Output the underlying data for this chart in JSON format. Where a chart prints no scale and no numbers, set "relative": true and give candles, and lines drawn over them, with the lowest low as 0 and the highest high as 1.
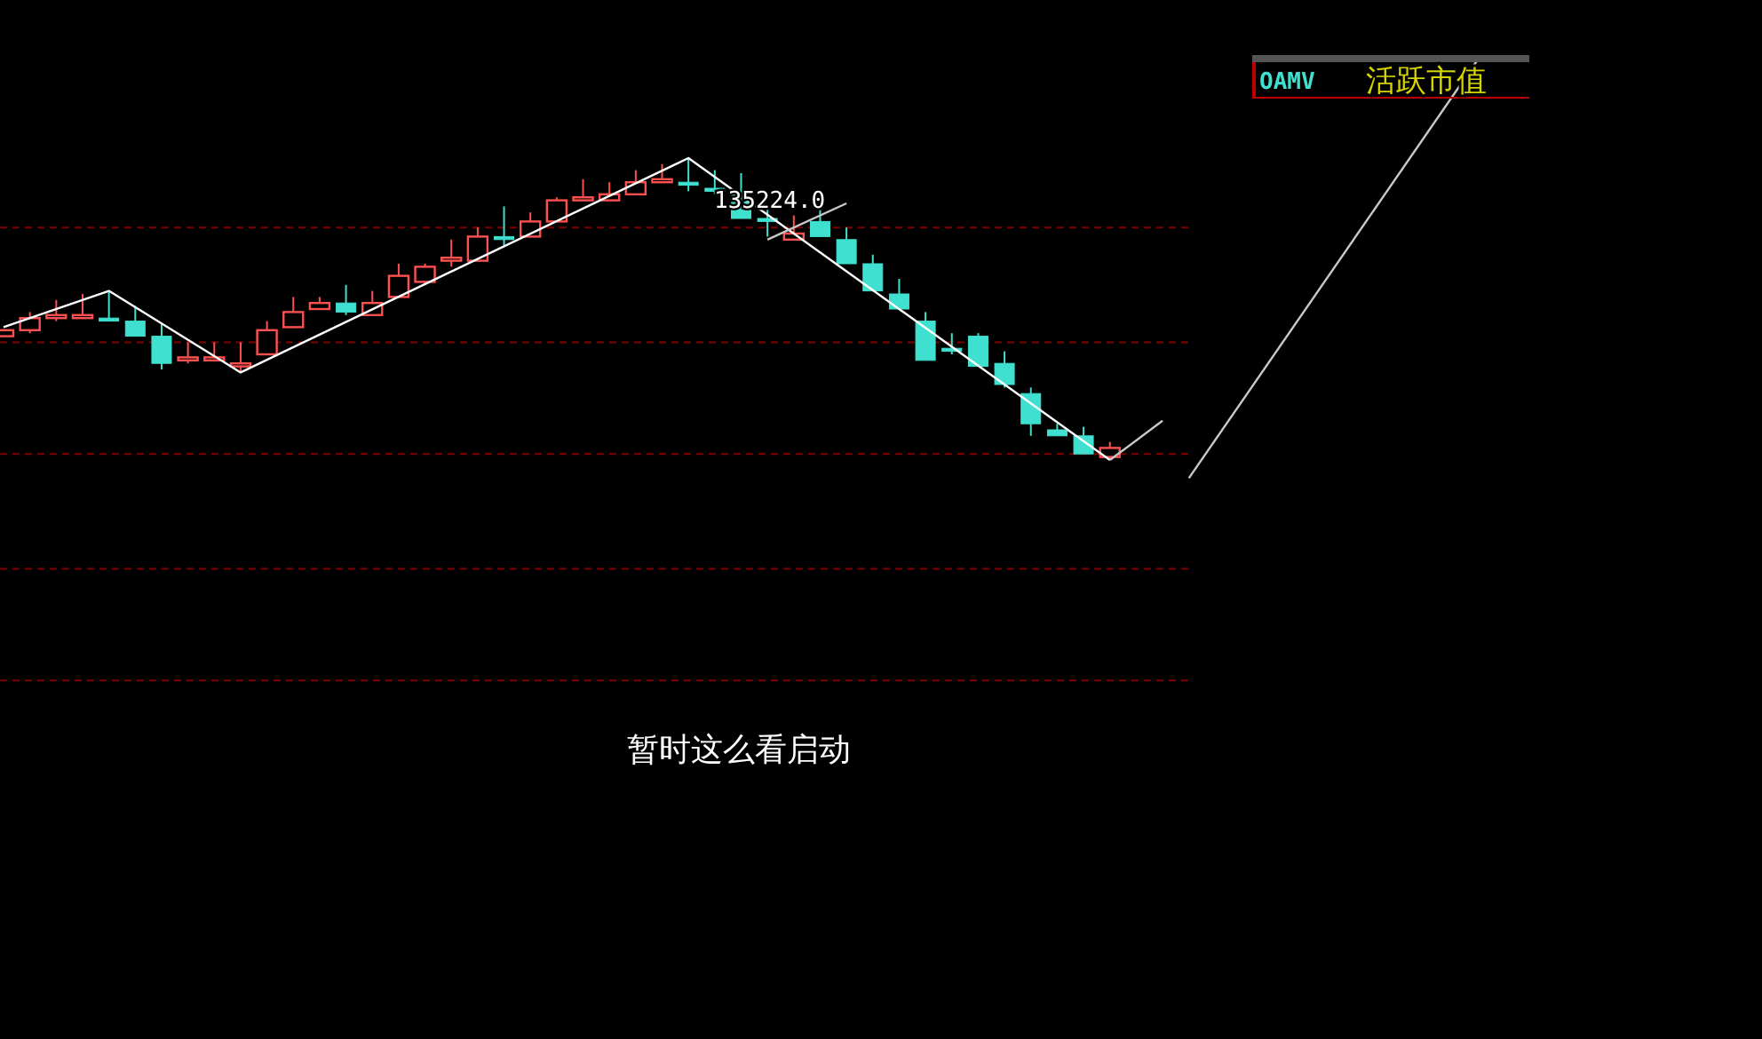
{
  "chart_data": {
    "type": "candlestick",
    "relative": true,
    "title": "OAMV",
    "subtitle": "活跃市值",
    "annotations": [
      "135224.0",
      "暂时这么看启动"
    ],
    "categories": [
      null,
      null,
      null,
      null,
      null,
      null,
      null,
      null,
      null,
      null,
      null,
      null,
      null,
      null,
      null,
      null,
      null,
      null,
      null,
      null,
      null,
      null,
      null,
      null,
      null,
      null,
      null,
      null,
      null,
      null,
      null,
      null,
      null,
      null,
      null,
      null,
      null,
      null,
      null,
      null,
      null,
      null,
      null,
      null,
      null,
      null,
      null,
      null,
      null,
      null,
      null,
      null,
      null,
      null,
      null,
      null,
      null
    ],
    "ohlc": [
      [
        0.41,
        0.43,
        0.41,
        0.43
      ],
      [
        0.43,
        0.49,
        0.42,
        0.47
      ],
      [
        0.47,
        0.53,
        0.46,
        0.48
      ],
      [
        0.47,
        0.55,
        0.47,
        0.48
      ],
      [
        0.47,
        0.56,
        0.46,
        0.46
      ],
      [
        0.46,
        0.51,
        0.41,
        0.41
      ],
      [
        0.41,
        0.45,
        0.3,
        0.32
      ],
      [
        0.33,
        0.39,
        0.32,
        0.34
      ],
      [
        0.33,
        0.39,
        0.33,
        0.34
      ],
      [
        0.31,
        0.39,
        0.29,
        0.32
      ],
      [
        0.35,
        0.46,
        0.35,
        0.43
      ],
      [
        0.44,
        0.54,
        0.44,
        0.49
      ],
      [
        0.5,
        0.54,
        0.5,
        0.52
      ],
      [
        0.52,
        0.58,
        0.48,
        0.49
      ],
      [
        0.48,
        0.56,
        0.48,
        0.52
      ],
      [
        0.54,
        0.65,
        0.54,
        0.61
      ],
      [
        0.59,
        0.65,
        0.58,
        0.64
      ],
      [
        0.66,
        0.73,
        0.64,
        0.67
      ],
      [
        0.66,
        0.77,
        0.66,
        0.74
      ],
      [
        0.74,
        0.84,
        0.71,
        0.73
      ],
      [
        0.74,
        0.82,
        0.74,
        0.79
      ],
      [
        0.79,
        0.87,
        0.79,
        0.86
      ],
      [
        0.86,
        0.93,
        0.86,
        0.87
      ],
      [
        0.86,
        0.92,
        0.86,
        0.88
      ],
      [
        0.88,
        0.96,
        0.88,
        0.92
      ],
      [
        0.92,
        0.98,
        0.92,
        0.93
      ],
      [
        0.92,
        1.0,
        0.89,
        0.91
      ],
      [
        0.9,
        0.96,
        0.88,
        0.89
      ],
      [
        0.89,
        0.95,
        0.8,
        0.8
      ],
      [
        0.8,
        0.84,
        0.74,
        0.79
      ],
      [
        0.73,
        0.81,
        0.73,
        0.75
      ],
      [
        0.79,
        0.83,
        0.74,
        0.74
      ],
      [
        0.73,
        0.77,
        0.65,
        0.65
      ],
      [
        0.65,
        0.68,
        0.56,
        0.56
      ],
      [
        0.55,
        0.6,
        0.5,
        0.5
      ],
      [
        0.46,
        0.49,
        0.33,
        0.33
      ],
      [
        0.37,
        0.42,
        0.35,
        0.36
      ],
      [
        0.41,
        0.42,
        0.31,
        0.31
      ],
      [
        0.32,
        0.36,
        0.24,
        0.25
      ],
      [
        0.22,
        0.24,
        0.08,
        0.12
      ],
      [
        0.1,
        0.12,
        0.08,
        0.08
      ],
      [
        0.08,
        0.11,
        0.02,
        0.02
      ],
      [
        0.01,
        0.06,
        0.0,
        0.04
      ],
      null,
      null,
      null,
      null,
      null,
      null,
      null,
      null,
      null,
      null,
      null,
      null,
      null,
      null
    ],
    "colors": [
      "#ff5050",
      "#ff5050",
      "#ff5050",
      "#ff5050",
      "#40e0d0",
      "#40e0d0",
      "#40e0d0",
      "#ff5050",
      "#ff5050",
      "#ff5050",
      "#ff5050",
      "#ff5050",
      "#ff5050",
      "#40e0d0",
      "#ff5050",
      "#ff5050",
      "#ff5050",
      "#ff5050",
      "#ff5050",
      "#40e0d0",
      "#ff5050",
      "#ff5050",
      "#ff5050",
      "#ff5050",
      "#ff5050",
      "#ff5050",
      "#40e0d0",
      "#40e0d0",
      "#40e0d0",
      "#40e0d0",
      "#ff5050",
      "#40e0d0",
      "#40e0d0",
      "#40e0d0",
      "#40e0d0",
      "#40e0d0",
      "#40e0d0",
      "#40e0d0",
      "#40e0d0",
      "#40e0d0",
      "#40e0d0",
      "#40e0d0",
      "#ff5050",
      null,
      null,
      null,
      null,
      null,
      null,
      null,
      null,
      null,
      null,
      null,
      null,
      null,
      null
    ],
    "series": [
      {
        "type": "line",
        "color": "#ffffff",
        "values": [
          0.44,
          null,
          null,
          null,
          0.56,
          null,
          null,
          null,
          null,
          0.29,
          null,
          null,
          null,
          null,
          null,
          null,
          null,
          null,
          null,
          null,
          null,
          null,
          null,
          null,
          null,
          null,
          1.0,
          null,
          null,
          null,
          null,
          null,
          null,
          null,
          null,
          null,
          null,
          null,
          null,
          null,
          null,
          null,
          0.0,
          null,
          null,
          null,
          null,
          null,
          null,
          null,
          null,
          null,
          null,
          null,
          null,
          null,
          null
        ]
      },
      {
        "type": "line",
        "color": "#c8c8c8",
        "values": [
          null,
          null,
          null,
          null,
          null,
          null,
          null,
          null,
          null,
          null,
          null,
          null,
          null,
          null,
          null,
          null,
          null,
          null,
          null,
          null,
          null,
          null,
          null,
          null,
          null,
          null,
          null,
          null,
          null,
          null,
          null,
          null,
          null,
          null,
          null,
          null,
          null,
          null,
          null,
          null,
          null,
          null,
          0.0,
          null,
          0.13,
          null,
          null,
          null,
          null,
          null,
          null,
          null,
          null,
          null,
          null,
          null,
          null
        ]
      },
      {
        "type": "line",
        "color": "#c8c8c8",
        "values": [
          null,
          null,
          null,
          null,
          null,
          null,
          null,
          null,
          null,
          null,
          null,
          null,
          null,
          null,
          null,
          null,
          null,
          null,
          null,
          null,
          null,
          null,
          null,
          null,
          null,
          null,
          null,
          null,
          null,
          0.73,
          null,
          null,
          0.85,
          null,
          null,
          null,
          null,
          null,
          null,
          null,
          null,
          null,
          null,
          null,
          null,
          null,
          null,
          null,
          null,
          null,
          null,
          null,
          null,
          null,
          null,
          null,
          null
        ]
      },
      {
        "type": "line",
        "color": "#c8c8c8",
        "values": [
          null,
          null,
          null,
          null,
          null,
          null,
          null,
          null,
          null,
          null,
          null,
          null,
          null,
          null,
          null,
          null,
          null,
          null,
          null,
          null,
          null,
          null,
          null,
          null,
          null,
          null,
          null,
          null,
          null,
          null,
          null,
          null,
          null,
          null,
          null,
          null,
          null,
          null,
          null,
          null,
          null,
          null,
          null,
          null,
          null,
          -0.06,
          null,
          null,
          null,
          null,
          null,
          null,
          null,
          null,
          null,
          null,
          1.33
        ]
      }
    ],
    "ref_lines": [
      {
        "axis": "y",
        "value": 0.77,
        "color": "#800000",
        "line_style": "dashed"
      },
      {
        "axis": "y",
        "value": 0.39,
        "color": "#800000",
        "line_style": "dashed"
      },
      {
        "axis": "y",
        "value": 0.02,
        "color": "#800000",
        "line_style": "dashed"
      },
      {
        "axis": "y",
        "value": -0.36,
        "color": "#800000",
        "line_style": "dashed"
      },
      {
        "axis": "y",
        "value": -0.73,
        "color": "#800000",
        "line_style": "dashed"
      }
    ]
  }
}
